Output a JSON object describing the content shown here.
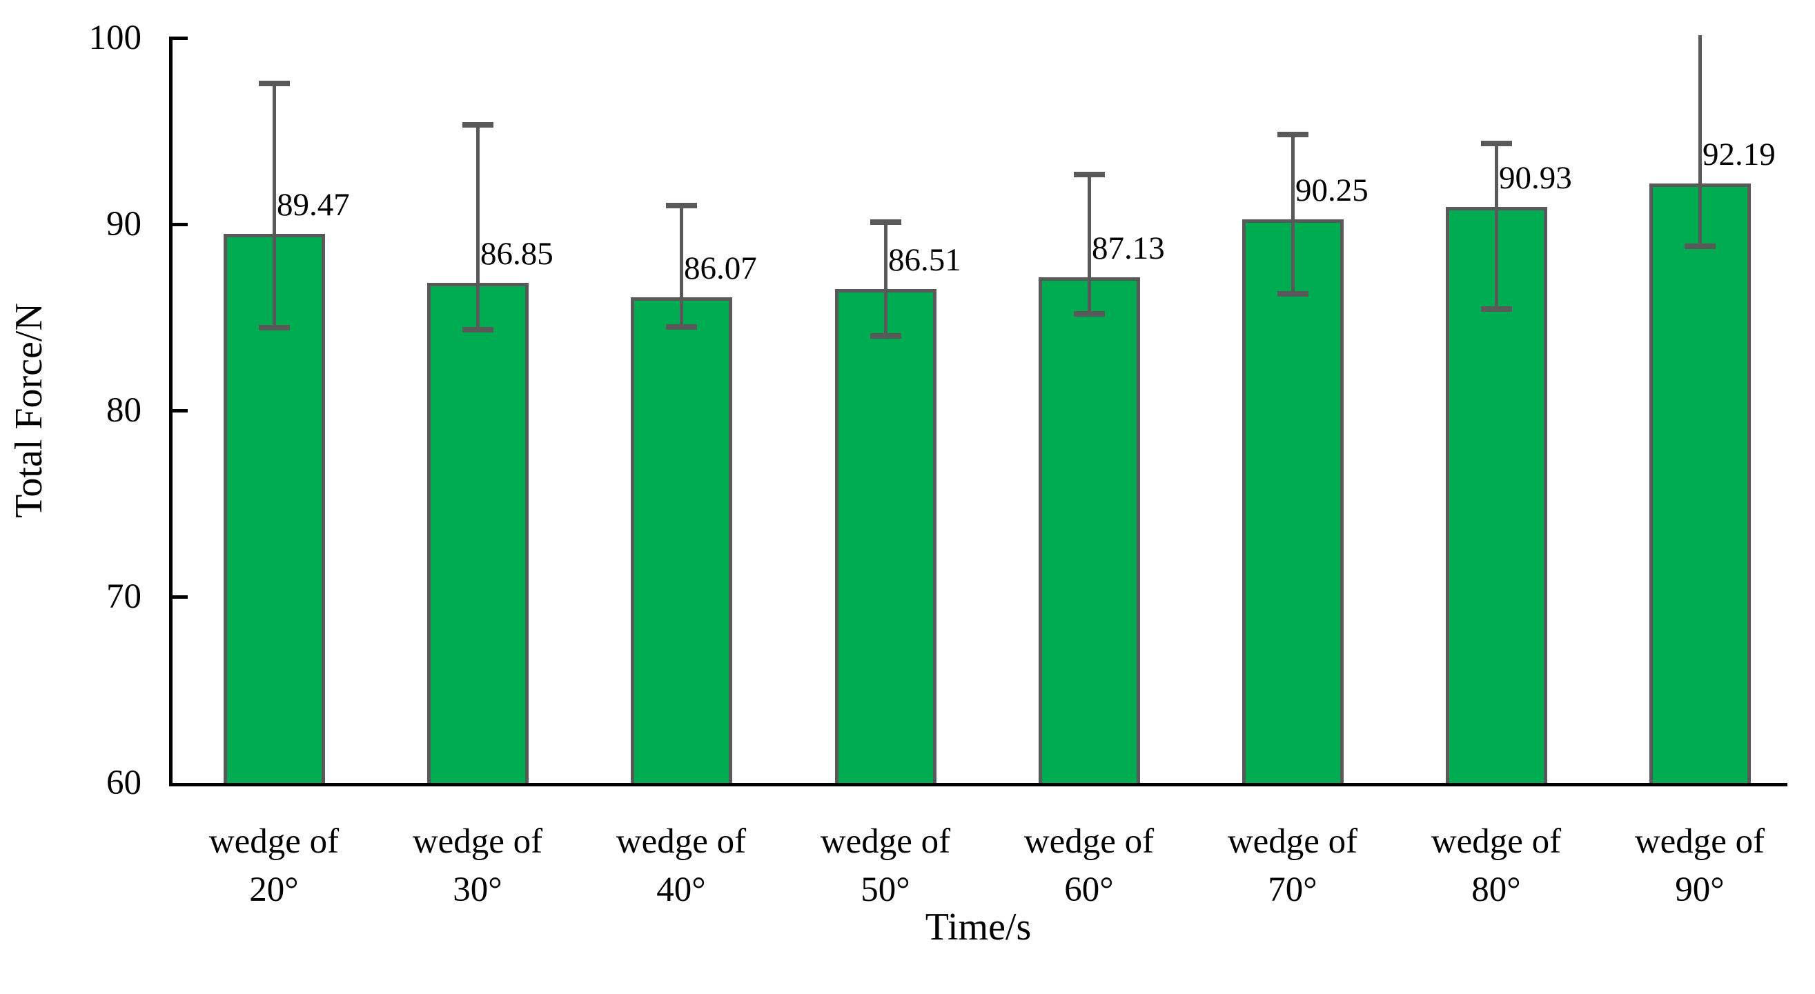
{
  "chart_data": {
    "type": "bar",
    "title": "",
    "xlabel": "Time/s",
    "ylabel": "Total Force/N",
    "ylim": [
      60,
      100
    ],
    "yticks": [
      "100",
      "90",
      "80",
      "70",
      "60"
    ],
    "ytick_values": [
      100,
      90,
      80,
      70,
      60
    ],
    "grid": false,
    "legend": null,
    "background_color": "#ffffff",
    "bar_fill_color": "#00AC52",
    "bar_border_color": "#595959",
    "error_bar_color": "#595959",
    "axis_color": "#000000",
    "text_color": "#000000",
    "categories": [
      {
        "line1": "wedge of",
        "line2": "20°"
      },
      {
        "line1": "wedge of",
        "line2": "30°"
      },
      {
        "line1": "wedge of",
        "line2": "40°"
      },
      {
        "line1": "wedge of",
        "line2": "50°"
      },
      {
        "line1": "wedge of",
        "line2": "60°"
      },
      {
        "line1": "wedge of",
        "line2": "70°"
      },
      {
        "line1": "wedge of",
        "line2": "80°"
      },
      {
        "line1": "wedge of",
        "line2": "90°"
      }
    ],
    "values": [
      89.47,
      86.85,
      86.07,
      86.51,
      87.13,
      90.25,
      90.93,
      92.19
    ],
    "data_labels": [
      "89.47",
      "86.85",
      "86.07",
      "86.51",
      "87.13",
      "90.25",
      "90.93",
      "92.19"
    ],
    "error_bars": [
      {
        "high": 97.55,
        "low": 84.45,
        "top_cap": true,
        "bottom_cap": true
      },
      {
        "high": 95.35,
        "low": 84.35,
        "top_cap": true,
        "bottom_cap": true
      },
      {
        "high": 91.0,
        "low": 84.5,
        "top_cap": true,
        "bottom_cap": true
      },
      {
        "high": 90.1,
        "low": 84.0,
        "top_cap": true,
        "bottom_cap": true
      },
      {
        "high": 92.65,
        "low": 85.2,
        "top_cap": true,
        "bottom_cap": true
      },
      {
        "high": 94.8,
        "low": 86.25,
        "top_cap": true,
        "bottom_cap": true
      },
      {
        "high": 94.35,
        "low": 85.45,
        "top_cap": true,
        "bottom_cap": true
      },
      {
        "high": 100.15,
        "low": 88.8,
        "top_cap": false,
        "bottom_cap": true
      }
    ]
  }
}
